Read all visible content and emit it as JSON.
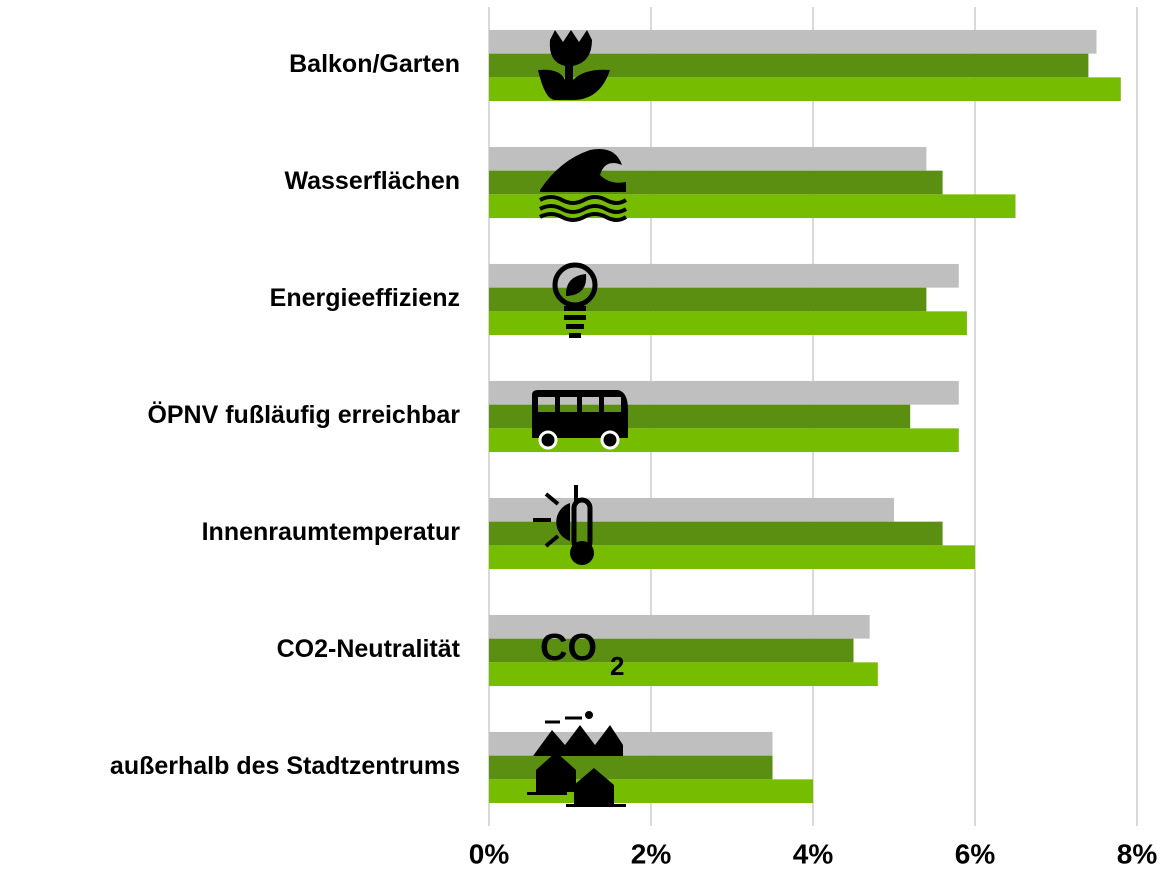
{
  "chart_data": {
    "type": "hbar",
    "categories": [
      "Balkon/Garten",
      "Wasserflächen",
      "Energieeffizienz",
      "ÖPNV fußläufig erreichbar",
      "Innenraumtemperatur",
      "CO2-Neutralität",
      "außerhalb des Stadtzentrums"
    ],
    "series": [
      {
        "color": "#bfbfbf",
        "values": [
          7.5,
          5.4,
          5.8,
          5.8,
          5.0,
          4.7,
          3.5
        ]
      },
      {
        "color": "#5a8f12",
        "values": [
          7.4,
          5.6,
          5.4,
          5.2,
          5.6,
          4.5,
          3.5
        ]
      },
      {
        "color": "#76bc00",
        "values": [
          7.8,
          6.5,
          5.9,
          5.8,
          6.0,
          4.8,
          4.0
        ]
      }
    ],
    "xlim": [
      0,
      8
    ],
    "xticks": [
      {
        "value": 0,
        "label": "0%"
      },
      {
        "value": 2,
        "label": "2%"
      },
      {
        "value": 4,
        "label": "4%"
      },
      {
        "value": 6,
        "label": "6%"
      },
      {
        "value": 8,
        "label": "8%"
      }
    ],
    "grid": true,
    "annotations": [
      "CO",
      "2"
    ]
  }
}
